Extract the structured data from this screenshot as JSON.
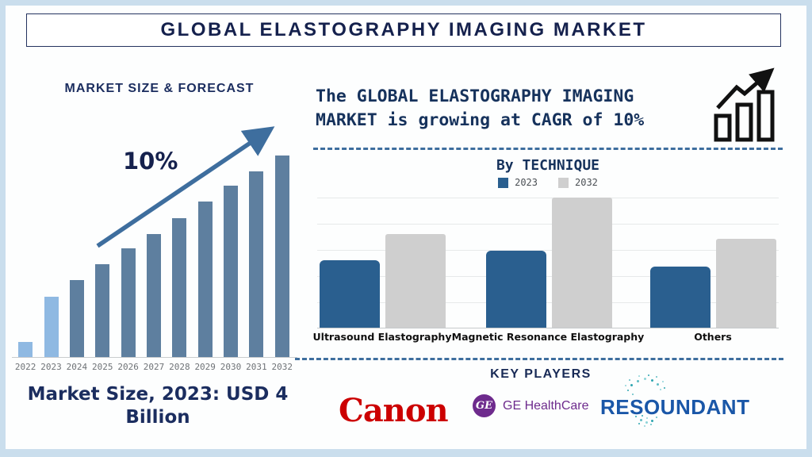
{
  "page": {
    "title": "GLOBAL ELASTOGRAPHY IMAGING MARKET"
  },
  "left_panel": {
    "heading": "MARKET SIZE & FORECAST",
    "growth_annotation": "10%",
    "market_size_note": "Market Size, 2023: USD 4 Billion"
  },
  "right_panel": {
    "headline": "The GLOBAL ELASTOGRAPHY IMAGING MARKET is growing at CAGR of 10%",
    "technique_heading": "By TECHNIQUE",
    "key_players_heading": "KEY PLAYERS",
    "key_players_logos": [
      {
        "name": "Canon",
        "color": "#cc0001"
      },
      {
        "name": "GE HealthCare",
        "color": "#6e2b8d"
      },
      {
        "name": "RESOUNDANT",
        "color": "#1a57a8",
        "dots_color": "#2fa6b0"
      }
    ]
  },
  "icons": {
    "growth_chart_icon": "outlined bar chart with rising zigzag arrow",
    "trend_arrow_icon": "diagonal up-right trend arrow"
  },
  "colors": {
    "navy_text": "#15214d",
    "steel_blue": "#3e6e9e",
    "frame_light_blue": "#cadeed",
    "left_bar_highlight": "#8fb9e2",
    "left_bar_default": "#5e7f9f",
    "series_2023_blue": "#2a5f8f",
    "series_2032_gray": "#cfcfcf"
  },
  "chart_data": [
    {
      "type": "bar",
      "title": "MARKET SIZE & FORECAST",
      "categories": [
        "2022",
        "2023",
        "2024",
        "2025",
        "2026",
        "2027",
        "2028",
        "2029",
        "2030",
        "2031",
        "2032"
      ],
      "values_pct_of_max": [
        7.5,
        30,
        38,
        46,
        54,
        61,
        69,
        77,
        85,
        92,
        100
      ],
      "note": "no value axis shown; bar heights estimated as percent of tallest (2032) bar",
      "highlighted_categories": [
        "2022",
        "2023"
      ],
      "bar_color_highlight": "#8fb9e2",
      "bar_color_default": "#5e7f9f",
      "annotation": "10%",
      "caption": "Market Size, 2023: USD 4 Billion",
      "xlabel": "",
      "ylabel": "",
      "grid": false
    },
    {
      "type": "bar",
      "title": "By TECHNIQUE",
      "categories": [
        "Ultrasound Elastography",
        "Magnetic Resonance Elastography",
        "Others"
      ],
      "series": [
        {
          "name": "2023",
          "color": "#2a5f8f",
          "values_pct_of_max": [
            52,
            59,
            47
          ]
        },
        {
          "name": "2032",
          "color": "#cfcfcf",
          "values_pct_of_max": [
            72,
            100,
            68
          ]
        }
      ],
      "note": "no value axis shown; heights estimated as percent of tallest (Magnetic Resonance Elastography 2032) bar",
      "grid": true,
      "gridline_count": 6,
      "legend_position": "top",
      "xlabel": "",
      "ylabel": ""
    }
  ]
}
